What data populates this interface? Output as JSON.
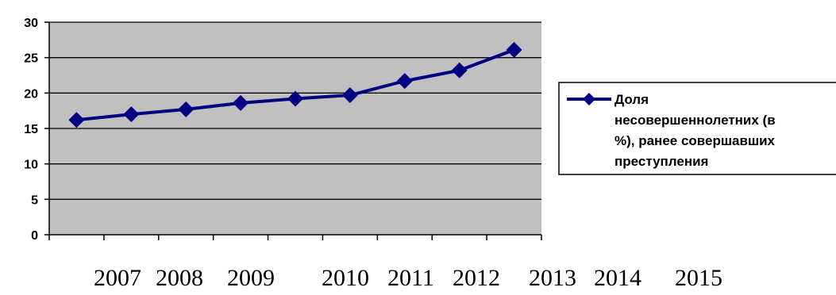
{
  "chart_data": {
    "type": "line",
    "title": "",
    "xlabel": "",
    "ylabel": "",
    "ylim": [
      0,
      30
    ],
    "yticks": [
      "0",
      "5",
      "10",
      "15",
      "20",
      "25",
      "30"
    ],
    "x": [
      "2007",
      "2008",
      "2009",
      "2010",
      "2011",
      "2012",
      "2013",
      "2014",
      "2015"
    ],
    "series": [
      {
        "name_lines": [
          "Доля",
          "несовершеннолетних (в",
          "%), ранее совершавших",
          "преступления"
        ],
        "values": [
          16.2,
          17.0,
          17.7,
          18.6,
          19.2,
          19.7,
          21.7,
          23.2,
          26.1
        ]
      }
    ],
    "grid": true,
    "legend_position": "right",
    "colors": {
      "plot_bg": "#c0c0c0",
      "line": "#000080",
      "grid": "#000000"
    }
  }
}
